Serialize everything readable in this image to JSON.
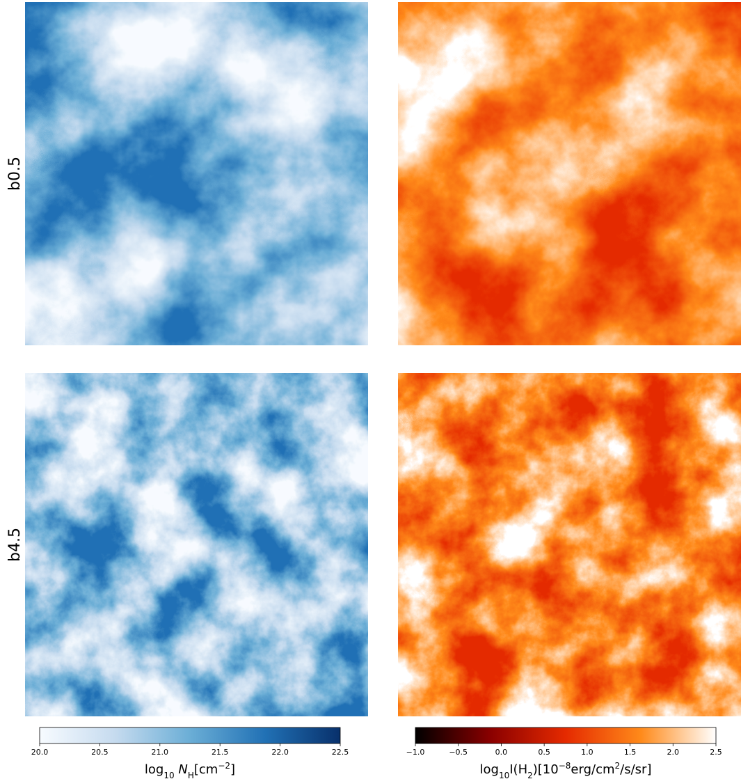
{
  "chart_data": {
    "type": "image-grid",
    "row_labels": [
      "b0.5",
      "b4.5"
    ],
    "colorbars": [
      {
        "label_parts": [
          {
            "text": "log"
          },
          {
            "text": "10",
            "shift": "sub"
          },
          {
            "text": " N",
            "style": "italic"
          },
          {
            "text": "H",
            "shift": "sub"
          },
          {
            "text": "[cm"
          },
          {
            "text": "−2",
            "shift": "super"
          },
          {
            "text": "]"
          }
        ],
        "lim": [
          20.0,
          22.5
        ],
        "ticks": [
          {
            "value": 20.0,
            "label": "20.0"
          },
          {
            "value": 20.5,
            "label": "20.5"
          },
          {
            "value": 21.0,
            "label": "21.0"
          },
          {
            "value": 21.5,
            "label": "21.5"
          },
          {
            "value": 22.0,
            "label": "22.0"
          },
          {
            "value": 22.5,
            "label": "22.5"
          }
        ],
        "colors": [
          "#f7fbff",
          "#c6dbef",
          "#6baed6",
          "#2171b5",
          "#08306b"
        ]
      },
      {
        "label_parts": [
          {
            "text": "log"
          },
          {
            "text": "10",
            "shift": "sub"
          },
          {
            "text": "I(H"
          },
          {
            "text": "2",
            "shift": "sub"
          },
          {
            "text": ")[10"
          },
          {
            "text": "−8",
            "shift": "super"
          },
          {
            "text": "erg/cm"
          },
          {
            "text": "2",
            "shift": "super"
          },
          {
            "text": "/s/sr]"
          }
        ],
        "lim": [
          -1.0,
          2.5
        ],
        "ticks": [
          {
            "value": -1.0,
            "label": "−1.0"
          },
          {
            "value": -0.5,
            "label": "−0.5"
          },
          {
            "value": 0.0,
            "label": "0.0"
          },
          {
            "value": 0.5,
            "label": "0.5"
          },
          {
            "value": 1.0,
            "label": "1.0"
          },
          {
            "value": 1.5,
            "label": "1.5"
          },
          {
            "value": 2.0,
            "label": "2.0"
          },
          {
            "value": 2.5,
            "label": "2.5"
          }
        ],
        "colors": [
          "#000000",
          "#8a0000",
          "#e52a00",
          "#ff8a1a",
          "#ffffff"
        ]
      }
    ]
  }
}
